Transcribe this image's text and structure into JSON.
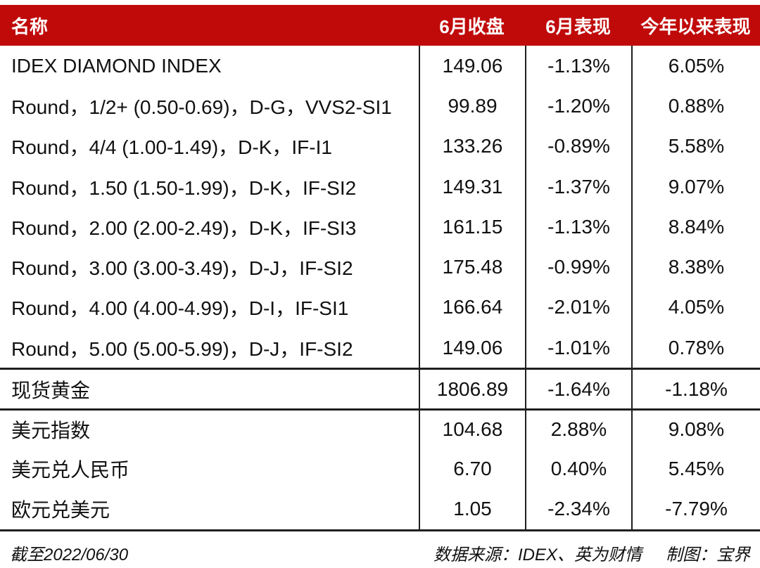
{
  "chart_data": {
    "type": "table",
    "columns": [
      "名称",
      "6月收盘",
      "6月表现",
      "今年以来表现"
    ],
    "rows": [
      {
        "name": "IDEX DIAMOND INDEX",
        "close": "149.06",
        "june": "-1.13%",
        "ytd": "6.05%",
        "section": "diamond"
      },
      {
        "name": "Round，1/2+ (0.50-0.69)，D-G，VVS2-SI1",
        "close": "99.89",
        "june": "-1.20%",
        "ytd": "0.88%",
        "section": "diamond"
      },
      {
        "name": "Round，4/4 (1.00-1.49)，D-K，IF-I1",
        "close": "133.26",
        "june": "-0.89%",
        "ytd": "5.58%",
        "section": "diamond"
      },
      {
        "name": "Round，1.50 (1.50-1.99)，D-K，IF-SI2",
        "close": "149.31",
        "june": "-1.37%",
        "ytd": "9.07%",
        "section": "diamond"
      },
      {
        "name": "Round，2.00 (2.00-2.49)，D-K，IF-SI3",
        "close": "161.15",
        "june": "-1.13%",
        "ytd": "8.84%",
        "section": "diamond"
      },
      {
        "name": "Round，3.00 (3.00-3.49)，D-J，IF-SI2",
        "close": "175.48",
        "june": "-0.99%",
        "ytd": "8.38%",
        "section": "diamond"
      },
      {
        "name": "Round，4.00 (4.00-4.99)，D-I，IF-SI1",
        "close": "166.64",
        "june": "-2.01%",
        "ytd": "4.05%",
        "section": "diamond"
      },
      {
        "name": "Round，5.00 (5.00-5.99)，D-J，IF-SI2",
        "close": "149.06",
        "june": "-1.01%",
        "ytd": "0.78%",
        "section": "diamond"
      },
      {
        "name": "现货黄金",
        "close": "1806.89",
        "june": "-1.64%",
        "ytd": "-1.18%",
        "section": "gold"
      },
      {
        "name": "美元指数",
        "close": "104.68",
        "june": "2.88%",
        "ytd": "9.08%",
        "section": "currency"
      },
      {
        "name": "美元兑人民币",
        "close": "6.70",
        "june": "0.40%",
        "ytd": "5.45%",
        "section": "currency"
      },
      {
        "name": "欧元兑美元",
        "close": "1.05",
        "june": "-2.34%",
        "ytd": "-7.79%",
        "section": "currency"
      }
    ]
  },
  "header": {
    "name": "名称",
    "close": "6月收盘",
    "june": "6月表现",
    "ytd": "今年以来表现"
  },
  "footer": {
    "as_of": "截至2022/06/30",
    "source": "数据来源：IDEX、英为财情",
    "credit": "制图：宝界"
  },
  "colors": {
    "header_bg": "#C00A0A",
    "header_text": "#FFFFFF",
    "line": "#1F1F1F",
    "text": "#111111"
  }
}
